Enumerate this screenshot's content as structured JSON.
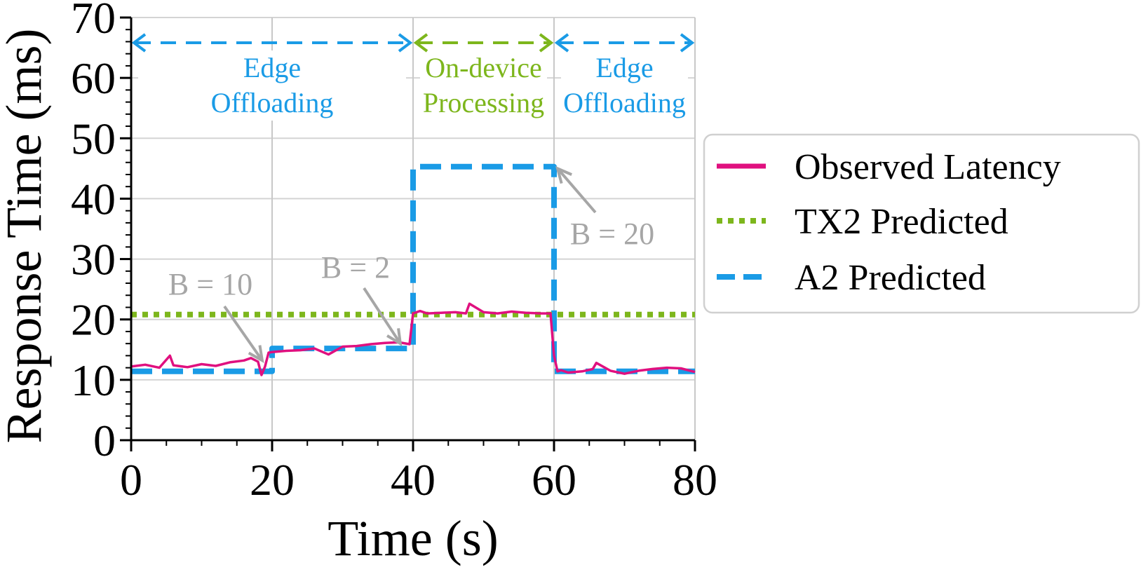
{
  "chart_data": {
    "type": "line",
    "xlabel": "Time (s)",
    "ylabel": "Response Time (ms)",
    "xlim": [
      0,
      80
    ],
    "ylim": [
      0,
      70
    ],
    "x_ticks": [
      0,
      20,
      40,
      60,
      80
    ],
    "y_ticks": [
      0,
      10,
      20,
      30,
      40,
      50,
      60,
      70
    ],
    "grid": true,
    "legend_position": "right",
    "colors": {
      "observed": "#e0107f",
      "tx2": "#7db61c",
      "a2": "#1a9be6",
      "annotation": "#a6a6a6"
    },
    "series": [
      {
        "name": "Observed Latency",
        "style": "solid",
        "x": [
          0,
          2,
          4,
          5.5,
          6,
          8,
          10,
          12,
          14,
          16,
          17,
          18,
          18.5,
          19,
          19.5,
          20,
          22,
          24,
          26,
          28,
          30,
          32,
          34,
          36,
          38,
          39.5,
          40,
          41,
          42,
          44,
          46,
          47.5,
          48,
          50,
          52,
          54,
          56,
          58,
          59.5,
          60,
          60.5,
          61,
          62,
          64,
          65.5,
          66,
          68,
          70,
          72,
          74,
          76,
          78,
          80
        ],
        "y": [
          12.2,
          12.5,
          12.0,
          14.0,
          12.4,
          12.1,
          12.6,
          12.3,
          12.9,
          13.2,
          13.6,
          13.0,
          10.8,
          12.2,
          14.5,
          14.6,
          14.8,
          14.9,
          15.2,
          14.2,
          15.5,
          15.6,
          15.9,
          16.1,
          16.2,
          15.9,
          21.0,
          21.4,
          21.0,
          21.1,
          21.2,
          21.0,
          22.6,
          21.2,
          21.0,
          21.3,
          21.1,
          21.0,
          21.0,
          14.0,
          11.4,
          11.6,
          11.2,
          11.4,
          11.8,
          12.8,
          11.5,
          11.0,
          11.5,
          11.8,
          12.0,
          11.9,
          11.3
        ]
      },
      {
        "name": "TX2 Predicted",
        "style": "dotted",
        "x": [
          0,
          80
        ],
        "y": [
          20.8,
          20.8
        ]
      },
      {
        "name": "A2 Predicted",
        "style": "dashed",
        "x": [
          0,
          20,
          20,
          40,
          40,
          60,
          60,
          80
        ],
        "y": [
          11.4,
          11.4,
          15.2,
          15.2,
          45.3,
          45.3,
          11.4,
          11.4
        ]
      }
    ],
    "regions": [
      {
        "label_line1": "Edge",
        "label_line2": "Offloading",
        "x_start": 0,
        "x_end": 40,
        "color": "#1a9be6"
      },
      {
        "label_line1": "On-device",
        "label_line2": "Processing",
        "x_start": 40,
        "x_end": 60,
        "color": "#7db61c"
      },
      {
        "label_line1": "Edge",
        "label_line2": "Offloading",
        "x_start": 60,
        "x_end": 80,
        "color": "#1a9be6"
      }
    ],
    "annotations": [
      {
        "text": "B = 10",
        "target_x": 18.6,
        "target_y": 13.2
      },
      {
        "text": "B = 2",
        "target_x": 38.2,
        "target_y": 16.0
      },
      {
        "text": "B = 20",
        "target_x": 60.5,
        "target_y": 45.0
      }
    ]
  }
}
